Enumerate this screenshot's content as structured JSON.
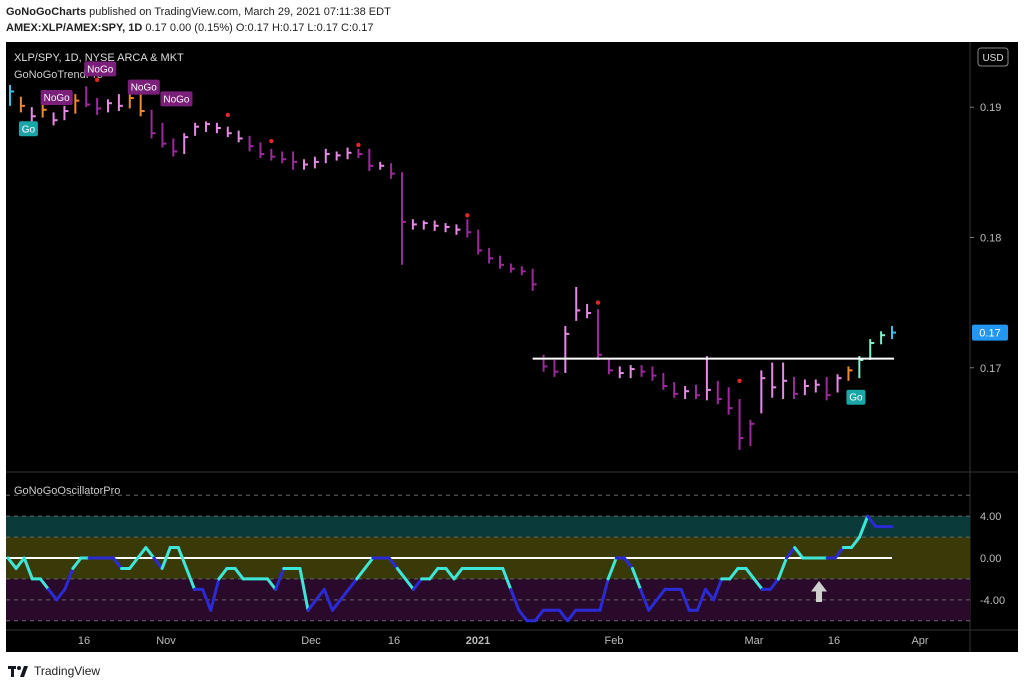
{
  "header": {
    "author": "GoNoGoCharts",
    "published": "published on TradingView.com, March 29, 2021 07:11:38 EDT",
    "symbol": "AMEX:XLP/AMEX:SPY, 1D",
    "quote": "0.17 0.00 (0.15%) O:0.17 H:0.17 L:0.17 C:0.17"
  },
  "main_pane": {
    "title": "XLP/SPY, 1D, NYSE ARCA & MKT",
    "indicator": "GoNoGoTrendPro",
    "currency_button": "USD",
    "price_labels": [
      "0.19",
      "0.18",
      "0.17"
    ],
    "last_price_tag": "0.17",
    "signal_labels": [
      {
        "text": "NoGo"
      },
      {
        "text": "NoGo"
      },
      {
        "text": "NoGo"
      },
      {
        "text": "NoGo"
      },
      {
        "text": "Go"
      },
      {
        "text": "Go"
      }
    ]
  },
  "oscillator_pane": {
    "title": "GoNoGoOscillatorPro",
    "labels": [
      "4.00",
      "0.00",
      "-4.00"
    ]
  },
  "x_axis": {
    "ticks": [
      "16",
      "Nov",
      "Dec",
      "16",
      "2021",
      "Feb",
      "Mar",
      "16",
      "Apr"
    ]
  },
  "footer": {
    "brand": "TradingView"
  },
  "colors": {
    "background": "#000000",
    "nogo_bar": "#9c2a9c",
    "nogo_weak": "#e68ae6",
    "go_bar": "#3fc1e8",
    "go_weak": "#7ef0c9",
    "amber": "#f08a30",
    "osc_blue": "#2b2bd6",
    "osc_cyan": "#3ee6d8",
    "accent": "#2196f3"
  },
  "chart_data": [
    {
      "type": "ohlc",
      "title": "XLP/SPY, 1D, NYSE ARCA & MKT",
      "ylim": [
        0.162,
        0.195
      ],
      "y_ticks": [
        0.19,
        0.18,
        0.17
      ],
      "x_ticks": [
        "16",
        "Nov",
        "Dec",
        "16",
        "2021",
        "Feb",
        "Mar",
        "16",
        "Apr"
      ],
      "horizontal_level": 0.1707,
      "bars": [
        {
          "t": 0,
          "h": 0.1917,
          "l": 0.1901,
          "c": 0.1912,
          "s": "go"
        },
        {
          "t": 2,
          "h": 0.1908,
          "l": 0.1896,
          "c": 0.1901,
          "s": "amber"
        },
        {
          "t": 4,
          "h": 0.19,
          "l": 0.1889,
          "c": 0.1893,
          "s": "weak"
        },
        {
          "t": 6,
          "h": 0.1904,
          "l": 0.1892,
          "c": 0.1898,
          "s": "amber"
        },
        {
          "t": 8,
          "h": 0.1896,
          "l": 0.1886,
          "c": 0.189,
          "s": "weak"
        },
        {
          "t": 10,
          "h": 0.1901,
          "l": 0.189,
          "c": 0.1897,
          "s": "weak"
        },
        {
          "t": 12,
          "h": 0.191,
          "l": 0.1895,
          "c": 0.1905,
          "s": "amber"
        },
        {
          "t": 14,
          "h": 0.1916,
          "l": 0.19,
          "c": 0.1902,
          "s": "nogo"
        },
        {
          "t": 16,
          "h": 0.1907,
          "l": 0.1894,
          "c": 0.1899,
          "s": "nogo"
        },
        {
          "t": 18,
          "h": 0.1906,
          "l": 0.1896,
          "c": 0.1903,
          "s": "weak"
        },
        {
          "t": 20,
          "h": 0.191,
          "l": 0.1897,
          "c": 0.1901,
          "s": "weak"
        },
        {
          "t": 22,
          "h": 0.1912,
          "l": 0.1899,
          "c": 0.1907,
          "s": "amber"
        },
        {
          "t": 24,
          "h": 0.1921,
          "l": 0.1893,
          "c": 0.1897,
          "s": "amber"
        },
        {
          "t": 26,
          "h": 0.1898,
          "l": 0.1876,
          "c": 0.188,
          "s": "nogo"
        },
        {
          "t": 28,
          "h": 0.1888,
          "l": 0.1869,
          "c": 0.1872,
          "s": "nogo"
        },
        {
          "t": 30,
          "h": 0.1876,
          "l": 0.1862,
          "c": 0.1866,
          "s": "nogo"
        },
        {
          "t": 32,
          "h": 0.188,
          "l": 0.1864,
          "c": 0.1877,
          "s": "weak"
        },
        {
          "t": 34,
          "h": 0.1888,
          "l": 0.1878,
          "c": 0.1885,
          "s": "weak"
        },
        {
          "t": 36,
          "h": 0.1889,
          "l": 0.1881,
          "c": 0.1887,
          "s": "weak"
        },
        {
          "t": 38,
          "h": 0.1888,
          "l": 0.188,
          "c": 0.1884,
          "s": "weak"
        },
        {
          "t": 40,
          "h": 0.1885,
          "l": 0.1877,
          "c": 0.188,
          "s": "weak"
        },
        {
          "t": 42,
          "h": 0.1882,
          "l": 0.1873,
          "c": 0.1876,
          "s": "weak"
        },
        {
          "t": 44,
          "h": 0.1878,
          "l": 0.1866,
          "c": 0.187,
          "s": "nogo"
        },
        {
          "t": 46,
          "h": 0.1873,
          "l": 0.1861,
          "c": 0.1864,
          "s": "nogo"
        },
        {
          "t": 48,
          "h": 0.1868,
          "l": 0.1859,
          "c": 0.1862,
          "s": "nogo"
        },
        {
          "t": 50,
          "h": 0.1866,
          "l": 0.1857,
          "c": 0.186,
          "s": "nogo"
        },
        {
          "t": 52,
          "h": 0.1866,
          "l": 0.1852,
          "c": 0.1858,
          "s": "nogo"
        },
        {
          "t": 54,
          "h": 0.186,
          "l": 0.1852,
          "c": 0.1856,
          "s": "weak"
        },
        {
          "t": 56,
          "h": 0.1862,
          "l": 0.1853,
          "c": 0.1858,
          "s": "weak"
        },
        {
          "t": 58,
          "h": 0.1868,
          "l": 0.1857,
          "c": 0.1864,
          "s": "weak"
        },
        {
          "t": 60,
          "h": 0.1866,
          "l": 0.1859,
          "c": 0.1863,
          "s": "weak"
        },
        {
          "t": 62,
          "h": 0.1869,
          "l": 0.186,
          "c": 0.1865,
          "s": "weak"
        },
        {
          "t": 64,
          "h": 0.1868,
          "l": 0.1861,
          "c": 0.1864,
          "s": "nogo"
        },
        {
          "t": 66,
          "h": 0.1868,
          "l": 0.1851,
          "c": 0.1855,
          "s": "nogo"
        },
        {
          "t": 68,
          "h": 0.1858,
          "l": 0.1852,
          "c": 0.1855,
          "s": "weak"
        },
        {
          "t": 70,
          "h": 0.1857,
          "l": 0.1845,
          "c": 0.1849,
          "s": "nogo"
        },
        {
          "t": 72,
          "h": 0.185,
          "l": 0.1779,
          "c": 0.1812,
          "s": "nogo"
        },
        {
          "t": 74,
          "h": 0.1814,
          "l": 0.1806,
          "c": 0.181,
          "s": "weak"
        },
        {
          "t": 76,
          "h": 0.1813,
          "l": 0.1806,
          "c": 0.1811,
          "s": "weak"
        },
        {
          "t": 78,
          "h": 0.1813,
          "l": 0.1805,
          "c": 0.1809,
          "s": "weak"
        },
        {
          "t": 80,
          "h": 0.1811,
          "l": 0.1804,
          "c": 0.1808,
          "s": "weak"
        },
        {
          "t": 82,
          "h": 0.181,
          "l": 0.1802,
          "c": 0.1806,
          "s": "weak"
        },
        {
          "t": 84,
          "h": 0.1814,
          "l": 0.18,
          "c": 0.1804,
          "s": "nogo"
        },
        {
          "t": 86,
          "h": 0.1806,
          "l": 0.1787,
          "c": 0.179,
          "s": "nogo"
        },
        {
          "t": 88,
          "h": 0.1792,
          "l": 0.178,
          "c": 0.1784,
          "s": "nogo"
        },
        {
          "t": 90,
          "h": 0.1786,
          "l": 0.1776,
          "c": 0.1779,
          "s": "nogo"
        },
        {
          "t": 92,
          "h": 0.178,
          "l": 0.1773,
          "c": 0.1776,
          "s": "nogo"
        },
        {
          "t": 94,
          "h": 0.1778,
          "l": 0.1771,
          "c": 0.1774,
          "s": "nogo"
        },
        {
          "t": 96,
          "h": 0.1776,
          "l": 0.1759,
          "c": 0.1764,
          "s": "nogo"
        },
        {
          "t": 98,
          "h": 0.171,
          "l": 0.1697,
          "c": 0.1701,
          "s": "nogo"
        },
        {
          "t": 100,
          "h": 0.1706,
          "l": 0.1693,
          "c": 0.1697,
          "s": "nogo"
        },
        {
          "t": 102,
          "h": 0.1732,
          "l": 0.1696,
          "c": 0.1726,
          "s": "weak"
        },
        {
          "t": 104,
          "h": 0.1762,
          "l": 0.1736,
          "c": 0.1744,
          "s": "weak"
        },
        {
          "t": 106,
          "h": 0.1749,
          "l": 0.1738,
          "c": 0.1742,
          "s": "weak"
        },
        {
          "t": 108,
          "h": 0.1745,
          "l": 0.1706,
          "c": 0.171,
          "s": "nogo"
        },
        {
          "t": 110,
          "h": 0.1707,
          "l": 0.1695,
          "c": 0.1698,
          "s": "nogo"
        },
        {
          "t": 112,
          "h": 0.1701,
          "l": 0.1692,
          "c": 0.1696,
          "s": "weak"
        },
        {
          "t": 114,
          "h": 0.1702,
          "l": 0.1692,
          "c": 0.1699,
          "s": "weak"
        },
        {
          "t": 116,
          "h": 0.1702,
          "l": 0.1693,
          "c": 0.1697,
          "s": "nogo"
        },
        {
          "t": 118,
          "h": 0.1701,
          "l": 0.169,
          "c": 0.1694,
          "s": "nogo"
        },
        {
          "t": 120,
          "h": 0.1696,
          "l": 0.1683,
          "c": 0.1686,
          "s": "nogo"
        },
        {
          "t": 122,
          "h": 0.1689,
          "l": 0.1677,
          "c": 0.168,
          "s": "nogo"
        },
        {
          "t": 124,
          "h": 0.1686,
          "l": 0.1676,
          "c": 0.1682,
          "s": "weak"
        },
        {
          "t": 126,
          "h": 0.1687,
          "l": 0.1676,
          "c": 0.1679,
          "s": "nogo"
        },
        {
          "t": 128,
          "h": 0.1709,
          "l": 0.1675,
          "c": 0.1683,
          "s": "weak"
        },
        {
          "t": 130,
          "h": 0.169,
          "l": 0.1672,
          "c": 0.1676,
          "s": "nogo"
        },
        {
          "t": 132,
          "h": 0.1685,
          "l": 0.1664,
          "c": 0.1669,
          "s": "nogo"
        },
        {
          "t": 134,
          "h": 0.1676,
          "l": 0.1637,
          "c": 0.1646,
          "s": "nogo"
        },
        {
          "t": 136,
          "h": 0.166,
          "l": 0.164,
          "c": 0.1657,
          "s": "nogo"
        },
        {
          "t": 138,
          "h": 0.1698,
          "l": 0.1665,
          "c": 0.1692,
          "s": "weak"
        },
        {
          "t": 140,
          "h": 0.1704,
          "l": 0.1677,
          "c": 0.1685,
          "s": "weak"
        },
        {
          "t": 142,
          "h": 0.1704,
          "l": 0.1676,
          "c": 0.169,
          "s": "weak"
        },
        {
          "t": 144,
          "h": 0.1693,
          "l": 0.1676,
          "c": 0.168,
          "s": "nogo"
        },
        {
          "t": 146,
          "h": 0.1691,
          "l": 0.1679,
          "c": 0.1686,
          "s": "weak"
        },
        {
          "t": 148,
          "h": 0.1691,
          "l": 0.1681,
          "c": 0.1687,
          "s": "weak"
        },
        {
          "t": 150,
          "h": 0.1693,
          "l": 0.1675,
          "c": 0.1679,
          "s": "nogo"
        },
        {
          "t": 152,
          "h": 0.1695,
          "l": 0.1681,
          "c": 0.1692,
          "s": "weak"
        },
        {
          "t": 154,
          "h": 0.1701,
          "l": 0.169,
          "c": 0.1698,
          "s": "amber"
        },
        {
          "t": 156,
          "h": 0.1709,
          "l": 0.1692,
          "c": 0.1706,
          "s": "goweak"
        },
        {
          "t": 158,
          "h": 0.1722,
          "l": 0.1706,
          "c": 0.1719,
          "s": "goweak"
        },
        {
          "t": 160,
          "h": 0.1728,
          "l": 0.1718,
          "c": 0.1725,
          "s": "goweak"
        },
        {
          "t": 162,
          "h": 0.1732,
          "l": 0.1722,
          "c": 0.1727,
          "s": "go"
        }
      ],
      "dots": [
        {
          "t": 16,
          "v": 0.1921
        },
        {
          "t": 40,
          "v": 0.1894
        },
        {
          "t": 48,
          "v": 0.1874
        },
        {
          "t": 64,
          "v": 0.1871
        },
        {
          "t": 84,
          "v": 0.1817
        },
        {
          "t": 108,
          "v": 0.175
        },
        {
          "t": 134,
          "v": 0.169
        }
      ],
      "last": 0.1727
    },
    {
      "type": "line",
      "title": "GoNoGoOscillatorPro",
      "ylim": [
        -6.5,
        6.5
      ],
      "y_ticks": [
        4,
        0,
        -4
      ],
      "zero_line": 0,
      "series": [
        {
          "values": [
            0,
            -1,
            0,
            -2,
            -2,
            -3,
            -4,
            -3,
            -1,
            0,
            0,
            0,
            0,
            0,
            -1,
            -1,
            0,
            1,
            0,
            -1,
            1,
            1,
            -1,
            -3,
            -3,
            -5,
            -2,
            -1,
            -1,
            -2,
            -2,
            -2,
            -2,
            -3,
            -1,
            -1,
            -1,
            -5,
            -4,
            -3,
            -5,
            -4,
            -3,
            -2,
            -1,
            0,
            0,
            0,
            -1,
            -2,
            -3,
            -2,
            -2,
            -1,
            -1,
            -2,
            -1,
            -1,
            -1,
            -1,
            -1,
            -1,
            -3,
            -5,
            -6,
            -6,
            -5,
            -5,
            -5,
            -6,
            -5,
            -5,
            -5,
            -5,
            -2,
            0,
            0,
            -1,
            -3,
            -5,
            -4,
            -3,
            -3,
            -3,
            -5,
            -5,
            -3,
            -4,
            -2,
            -2,
            -1,
            -1,
            -2,
            -3,
            -3,
            -2,
            0,
            1,
            0,
            0,
            0,
            0,
            0,
            1,
            1,
            2,
            4,
            3,
            3,
            3
          ]
        }
      ],
      "arrow_at": 85
    }
  ]
}
